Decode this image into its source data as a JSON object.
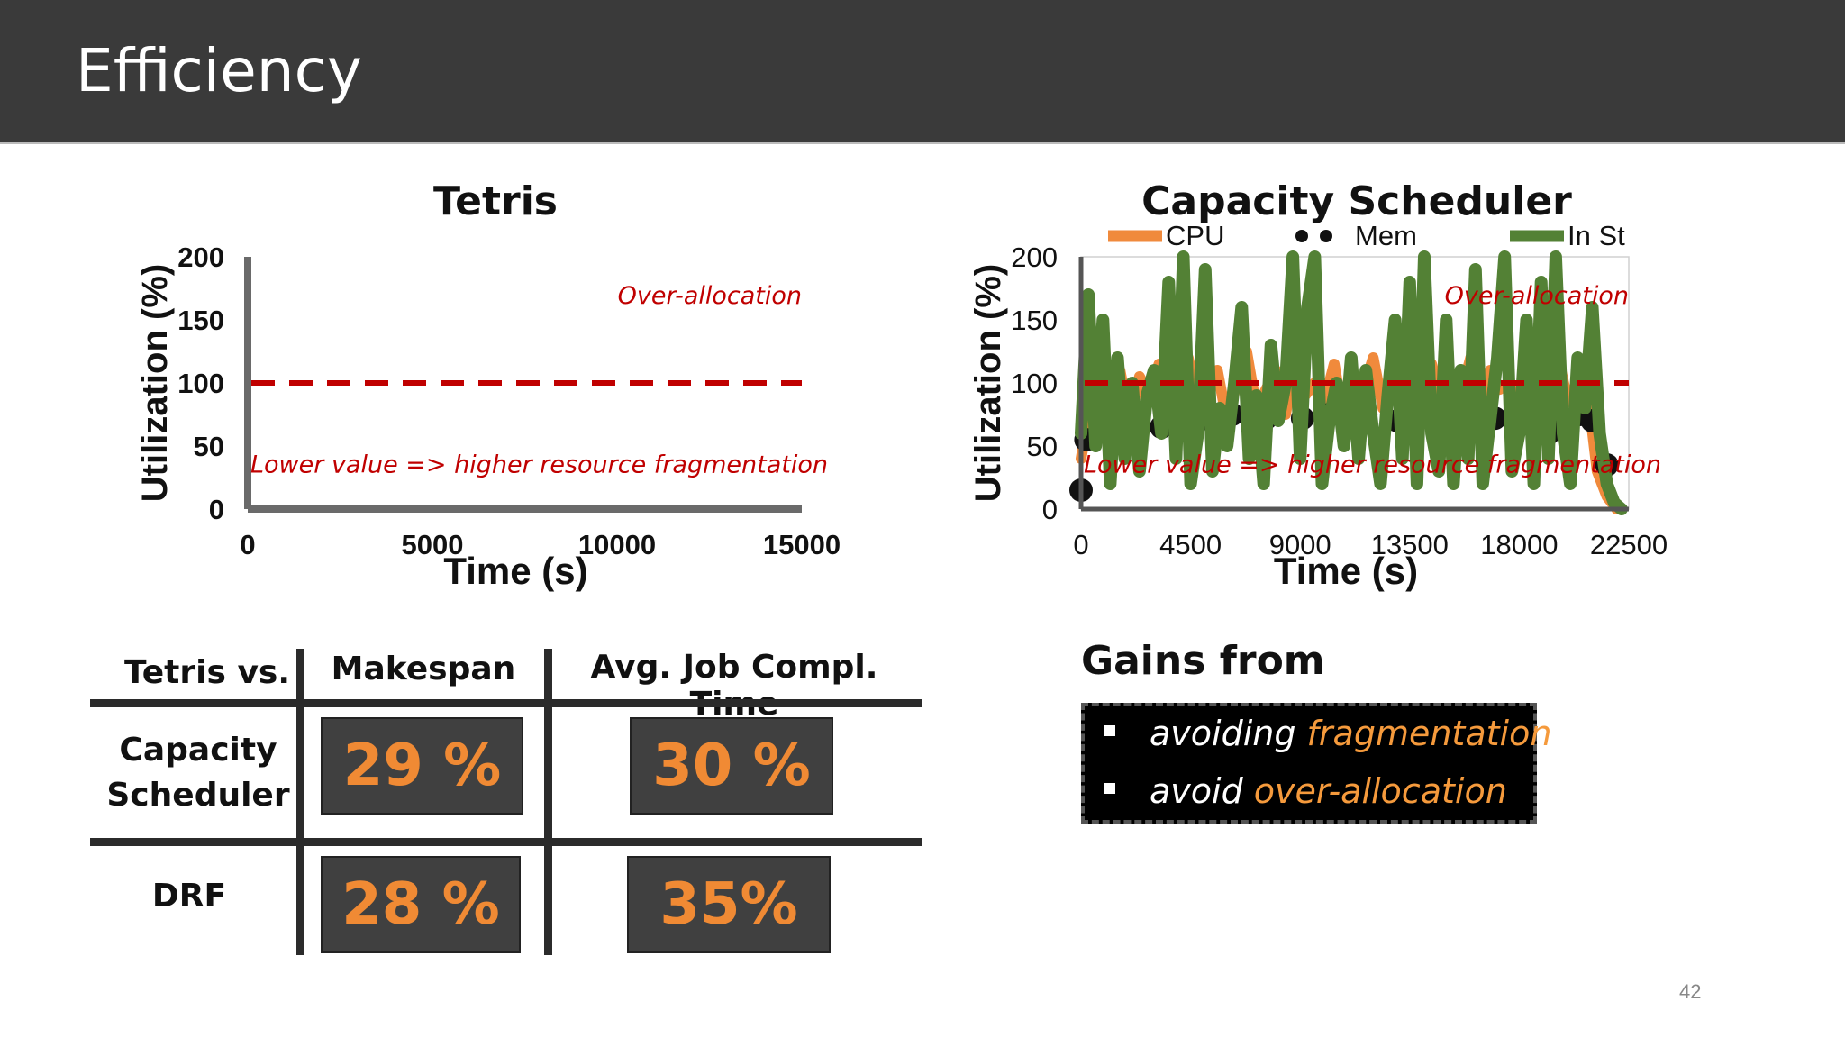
{
  "slide": {
    "title": "Efficiency",
    "page_number": "42"
  },
  "chart_data": [
    {
      "type": "line",
      "title": "Tetris",
      "xlabel": "Time (s)",
      "ylabel": "Utilization (%)",
      "xlim": [
        0,
        15000
      ],
      "ylim": [
        0,
        200
      ],
      "xticks": [
        "0",
        "5000",
        "10000",
        "15000"
      ],
      "yticks": [
        "0",
        "50",
        "100",
        "150",
        "200"
      ],
      "reference_line": {
        "y": 100,
        "style": "dashed",
        "color": "#c00000"
      },
      "annotations": [
        "Over-allocation",
        "Lower value => higher resource fragmentation"
      ],
      "series": []
    },
    {
      "type": "line",
      "title": "Capacity Scheduler",
      "xlabel": "Time (s)",
      "ylabel": "Utilization (%)",
      "xlim": [
        0,
        22500
      ],
      "ylim": [
        0,
        200
      ],
      "xticks": [
        "0",
        "4500",
        "9000",
        "13500",
        "18000",
        "22500"
      ],
      "yticks": [
        "0",
        "50",
        "100",
        "150",
        "200"
      ],
      "legend_position": "top",
      "reference_line": {
        "y": 100,
        "style": "dashed",
        "color": "#c00000"
      },
      "annotations": [
        "Over-allocation",
        "Lower value => higher resource fragmentation"
      ],
      "series": [
        {
          "name": "CPU",
          "color": "#f08a3c",
          "style": "line",
          "x": [
            0,
            400,
            800,
            1200,
            1600,
            2000,
            2400,
            2800,
            3200,
            3600,
            4000,
            4400,
            4800,
            5200,
            5600,
            6000,
            6400,
            6800,
            7200,
            7600,
            8000,
            8400,
            8800,
            9200,
            9600,
            10000,
            10400,
            10800,
            11200,
            11600,
            12000,
            12400,
            12800,
            13200,
            13600,
            14000,
            14400,
            14800,
            15200,
            15600,
            16000,
            16400,
            16800,
            17200,
            17600,
            18000,
            18400,
            18800,
            19200,
            19600,
            20000,
            20400,
            20800,
            21200,
            21600,
            22000
          ],
          "values": [
            40,
            85,
            95,
            80,
            110,
            70,
            105,
            90,
            115,
            75,
            100,
            120,
            85,
            95,
            110,
            70,
            100,
            125,
            80,
            95,
            110,
            75,
            120,
            90,
            100,
            85,
            115,
            70,
            105,
            95,
            120,
            80,
            100,
            110,
            75,
            95,
            115,
            85,
            105,
            90,
            120,
            80,
            110,
            95,
            100,
            75,
            115,
            90,
            105,
            120,
            85,
            100,
            95,
            30,
            10,
            0
          ]
        },
        {
          "name": "Mem",
          "color": "#111111",
          "style": "dots",
          "x": [
            0,
            200,
            800,
            1800,
            3300,
            4800,
            6200,
            7600,
            9100,
            10200,
            11700,
            13000,
            14300,
            15700,
            17000,
            18000,
            19200,
            19900,
            20500,
            21000,
            21600
          ],
          "values": [
            15,
            55,
            72,
            75,
            65,
            70,
            75,
            72,
            72,
            75,
            75,
            70,
            75,
            75,
            72,
            70,
            60,
            65,
            75,
            70,
            35
          ]
        },
        {
          "name": "In St",
          "color": "#538135",
          "style": "line",
          "x": [
            0,
            300,
            600,
            900,
            1200,
            1500,
            1800,
            2100,
            2400,
            2700,
            3000,
            3300,
            3600,
            3900,
            4200,
            4500,
            4800,
            5100,
            5400,
            5700,
            6000,
            6300,
            6600,
            6900,
            7200,
            7500,
            7800,
            8100,
            8400,
            8700,
            9000,
            9300,
            9600,
            9900,
            10200,
            10500,
            10800,
            11100,
            11400,
            11700,
            12000,
            12300,
            12600,
            12900,
            13200,
            13500,
            13800,
            14100,
            14400,
            14700,
            15000,
            15300,
            15600,
            15900,
            16200,
            16500,
            16800,
            17100,
            17400,
            17700,
            18000,
            18300,
            18600,
            18900,
            19200,
            19500,
            19800,
            20100,
            20400,
            20700,
            21000,
            21300,
            21600,
            21900,
            22200
          ],
          "values": [
            60,
            170,
            50,
            150,
            20,
            120,
            40,
            100,
            30,
            90,
            110,
            60,
            180,
            40,
            200,
            20,
            60,
            190,
            30,
            80,
            50,
            100,
            160,
            40,
            90,
            20,
            130,
            70,
            100,
            200,
            40,
            160,
            200,
            20,
            70,
            100,
            50,
            120,
            40,
            110,
            60,
            20,
            90,
            150,
            40,
            180,
            20,
            200,
            60,
            30,
            150,
            20,
            110,
            40,
            190,
            20,
            70,
            120,
            200,
            30,
            60,
            150,
            20,
            180,
            40,
            200,
            60,
            20,
            120,
            80,
            160,
            60,
            20,
            5,
            0
          ]
        }
      ]
    }
  ],
  "comparison_table": {
    "corner": "Tetris vs.",
    "col_headers": [
      "Makespan",
      "Avg. Job Compl. Time"
    ],
    "row1_label_line1": "Capacity",
    "row1_label_line2": "Scheduler",
    "row2_label": "DRF",
    "row1_values": [
      "29 %",
      "30 %"
    ],
    "row2_values": [
      "28 %",
      "35%"
    ],
    "value_color": "#f08a34"
  },
  "gains": {
    "title": "Gains from",
    "item1_prefix": "avoiding ",
    "item1_highlight": "fragmentation",
    "item2_prefix": "avoid ",
    "item2_highlight": "over-allocation"
  }
}
